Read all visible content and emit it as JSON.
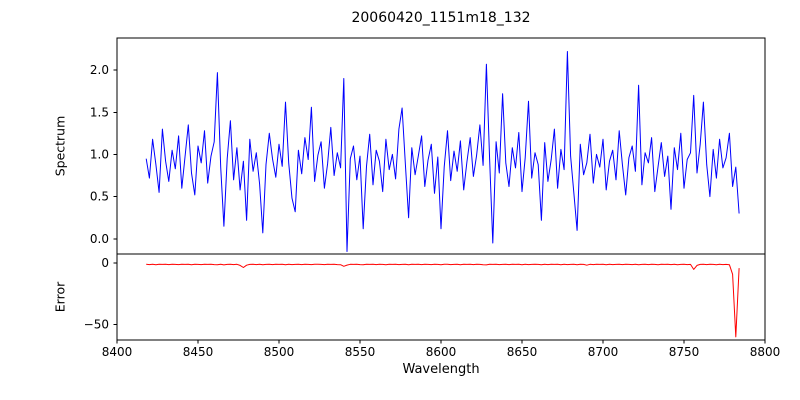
{
  "chart_data": {
    "type": "line",
    "title": "20060420_1151m18_132",
    "xlabel": "Wavelength",
    "xlim": [
      8400,
      8800
    ],
    "xticks": [
      8400,
      8450,
      8500,
      8550,
      8600,
      8650,
      8700,
      8750,
      8800
    ],
    "x_start": 8418,
    "x_step": 2,
    "grid": false,
    "legend": "none",
    "panels": [
      {
        "name": "spectrum",
        "ylabel": "Spectrum",
        "color": "#0000ff",
        "ylim": [
          -0.18,
          2.38
        ],
        "yticks": [
          {
            "v": 0.0,
            "label": "0.0"
          },
          {
            "v": 0.5,
            "label": "0.5"
          },
          {
            "v": 1.0,
            "label": "1.0"
          },
          {
            "v": 1.5,
            "label": "1.5"
          },
          {
            "v": 2.0,
            "label": "2.0"
          }
        ],
        "values": [
          0.95,
          0.72,
          1.18,
          0.88,
          0.55,
          1.3,
          0.92,
          0.68,
          1.05,
          0.83,
          1.22,
          0.6,
          0.97,
          1.35,
          0.78,
          0.52,
          1.1,
          0.9,
          1.28,
          0.66,
          0.98,
          1.15,
          1.97,
          0.85,
          0.15,
          0.95,
          1.4,
          0.7,
          1.08,
          0.58,
          0.92,
          0.22,
          1.18,
          0.8,
          1.02,
          0.65,
          0.07,
          0.88,
          1.25,
          0.95,
          0.73,
          1.12,
          0.86,
          1.62,
          0.9,
          0.48,
          0.32,
          1.05,
          0.77,
          1.2,
          0.94,
          1.56,
          0.68,
          0.99,
          1.15,
          0.6,
          0.89,
          1.32,
          0.75,
          1.02,
          0.84,
          1.9,
          -0.15,
          0.95,
          1.1,
          0.7,
          0.98,
          0.12,
          0.86,
          1.24,
          0.64,
          1.05,
          0.92,
          0.56,
          1.18,
          0.82,
          1.0,
          0.71,
          1.3,
          1.55,
          0.88,
          0.25,
          1.08,
          0.76,
          0.98,
          1.22,
          0.62,
          0.93,
          1.12,
          0.54,
          0.97,
          0.12,
          0.85,
          1.28,
          0.69,
          1.04,
          0.8,
          1.16,
          0.58,
          0.91,
          1.2,
          0.74,
          0.99,
          1.35,
          0.87,
          2.07,
          0.95,
          -0.05,
          1.15,
          0.78,
          1.72,
          0.9,
          0.62,
          1.08,
          0.84,
          1.26,
          0.56,
          0.96,
          1.63,
          0.72,
          1.02,
          0.88,
          0.22,
          1.14,
          0.68,
          0.94,
          1.3,
          0.6,
          1.06,
          0.82,
          2.22,
          0.98,
          0.55,
          0.1,
          1.12,
          0.76,
          0.9,
          1.24,
          0.66,
          1.0,
          0.85,
          1.18,
          0.58,
          0.92,
          1.05,
          0.7,
          1.28,
          0.88,
          0.52,
          0.96,
          1.1,
          0.8,
          1.82,
          0.64,
          1.02,
          0.9,
          1.2,
          0.56,
          0.86,
          1.14,
          0.74,
          0.98,
          0.35,
          1.08,
          0.82,
          1.25,
          0.6,
          0.94,
          1.02,
          1.7,
          0.78,
          1.12,
          1.62,
          0.88,
          0.5,
          1.06,
          0.72,
          1.18,
          0.84,
          0.96,
          1.25,
          0.62,
          0.85,
          0.3
        ]
      },
      {
        "name": "error",
        "ylabel": "Error",
        "color": "#ff0000",
        "ylim": [
          -62.5,
          7.5
        ],
        "yticks": [
          {
            "v": 0,
            "label": "0"
          },
          {
            "v": -50,
            "label": "−50"
          }
        ],
        "values": [
          -0.9,
          -1.1,
          -0.8,
          -1.2,
          -0.9,
          -1.0,
          -0.8,
          -1.1,
          -0.9,
          -1.0,
          -1.1,
          -0.8,
          -1.0,
          -0.9,
          -1.2,
          -0.8,
          -1.0,
          -1.1,
          -0.9,
          -1.0,
          -0.8,
          -1.1,
          -1.3,
          -0.9,
          -1.4,
          -1.0,
          -0.8,
          -1.1,
          -0.9,
          -1.8,
          -3.5,
          -1.6,
          -1.0,
          -0.9,
          -1.1,
          -0.8,
          -1.3,
          -1.0,
          -0.9,
          -1.1,
          -0.8,
          -1.0,
          -0.9,
          -1.2,
          -0.8,
          -1.1,
          -1.0,
          -0.9,
          -1.1,
          -0.8,
          -1.0,
          -1.1,
          -0.9,
          -0.8,
          -1.0,
          -1.1,
          -0.9,
          -1.0,
          -0.8,
          -1.1,
          -1.2,
          -2.5,
          -1.5,
          -0.9,
          -1.0,
          -0.8,
          -1.1,
          -1.3,
          -0.9,
          -1.0,
          -0.8,
          -1.1,
          -0.9,
          -1.0,
          -1.2,
          -0.8,
          -1.0,
          -0.9,
          -1.1,
          -1.0,
          -0.9,
          -1.2,
          -0.8,
          -1.0,
          -0.9,
          -1.1,
          -0.8,
          -1.0,
          -1.1,
          -0.9,
          -1.0,
          -1.3,
          -0.9,
          -0.8,
          -1.1,
          -1.0,
          -0.9,
          -1.2,
          -0.8,
          -1.0,
          -0.9,
          -1.1,
          -0.8,
          -1.0,
          -1.2,
          -1.4,
          -0.9,
          -1.0,
          -0.8,
          -1.1,
          -1.0,
          -0.9,
          -1.1,
          -0.8,
          -1.0,
          -0.9,
          -1.2,
          -0.8,
          -1.1,
          -1.0,
          -0.9,
          -1.0,
          -1.3,
          -0.8,
          -1.1,
          -0.9,
          -1.0,
          -0.8,
          -1.2,
          -0.9,
          -1.1,
          -1.0,
          -0.9,
          -1.2,
          -0.8,
          -1.0,
          -1.6,
          -0.9,
          -1.1,
          -0.8,
          -1.0,
          -0.9,
          -1.2,
          -0.8,
          -1.1,
          -1.0,
          -0.9,
          -1.1,
          -0.8,
          -1.0,
          -1.1,
          -0.9,
          -1.3,
          -1.0,
          -0.8,
          -1.1,
          -0.9,
          -1.0,
          -1.2,
          -0.8,
          -1.0,
          -0.9,
          -1.1,
          -0.8,
          -1.2,
          -1.0,
          -0.9,
          -1.1,
          -1.0,
          -5.0,
          -1.8,
          -1.0,
          -0.9,
          -1.1,
          -0.8,
          -1.0,
          -1.2,
          -0.9,
          -1.1,
          -1.0,
          -1.2,
          -9.0,
          -60.0,
          -4.0
        ]
      }
    ]
  }
}
